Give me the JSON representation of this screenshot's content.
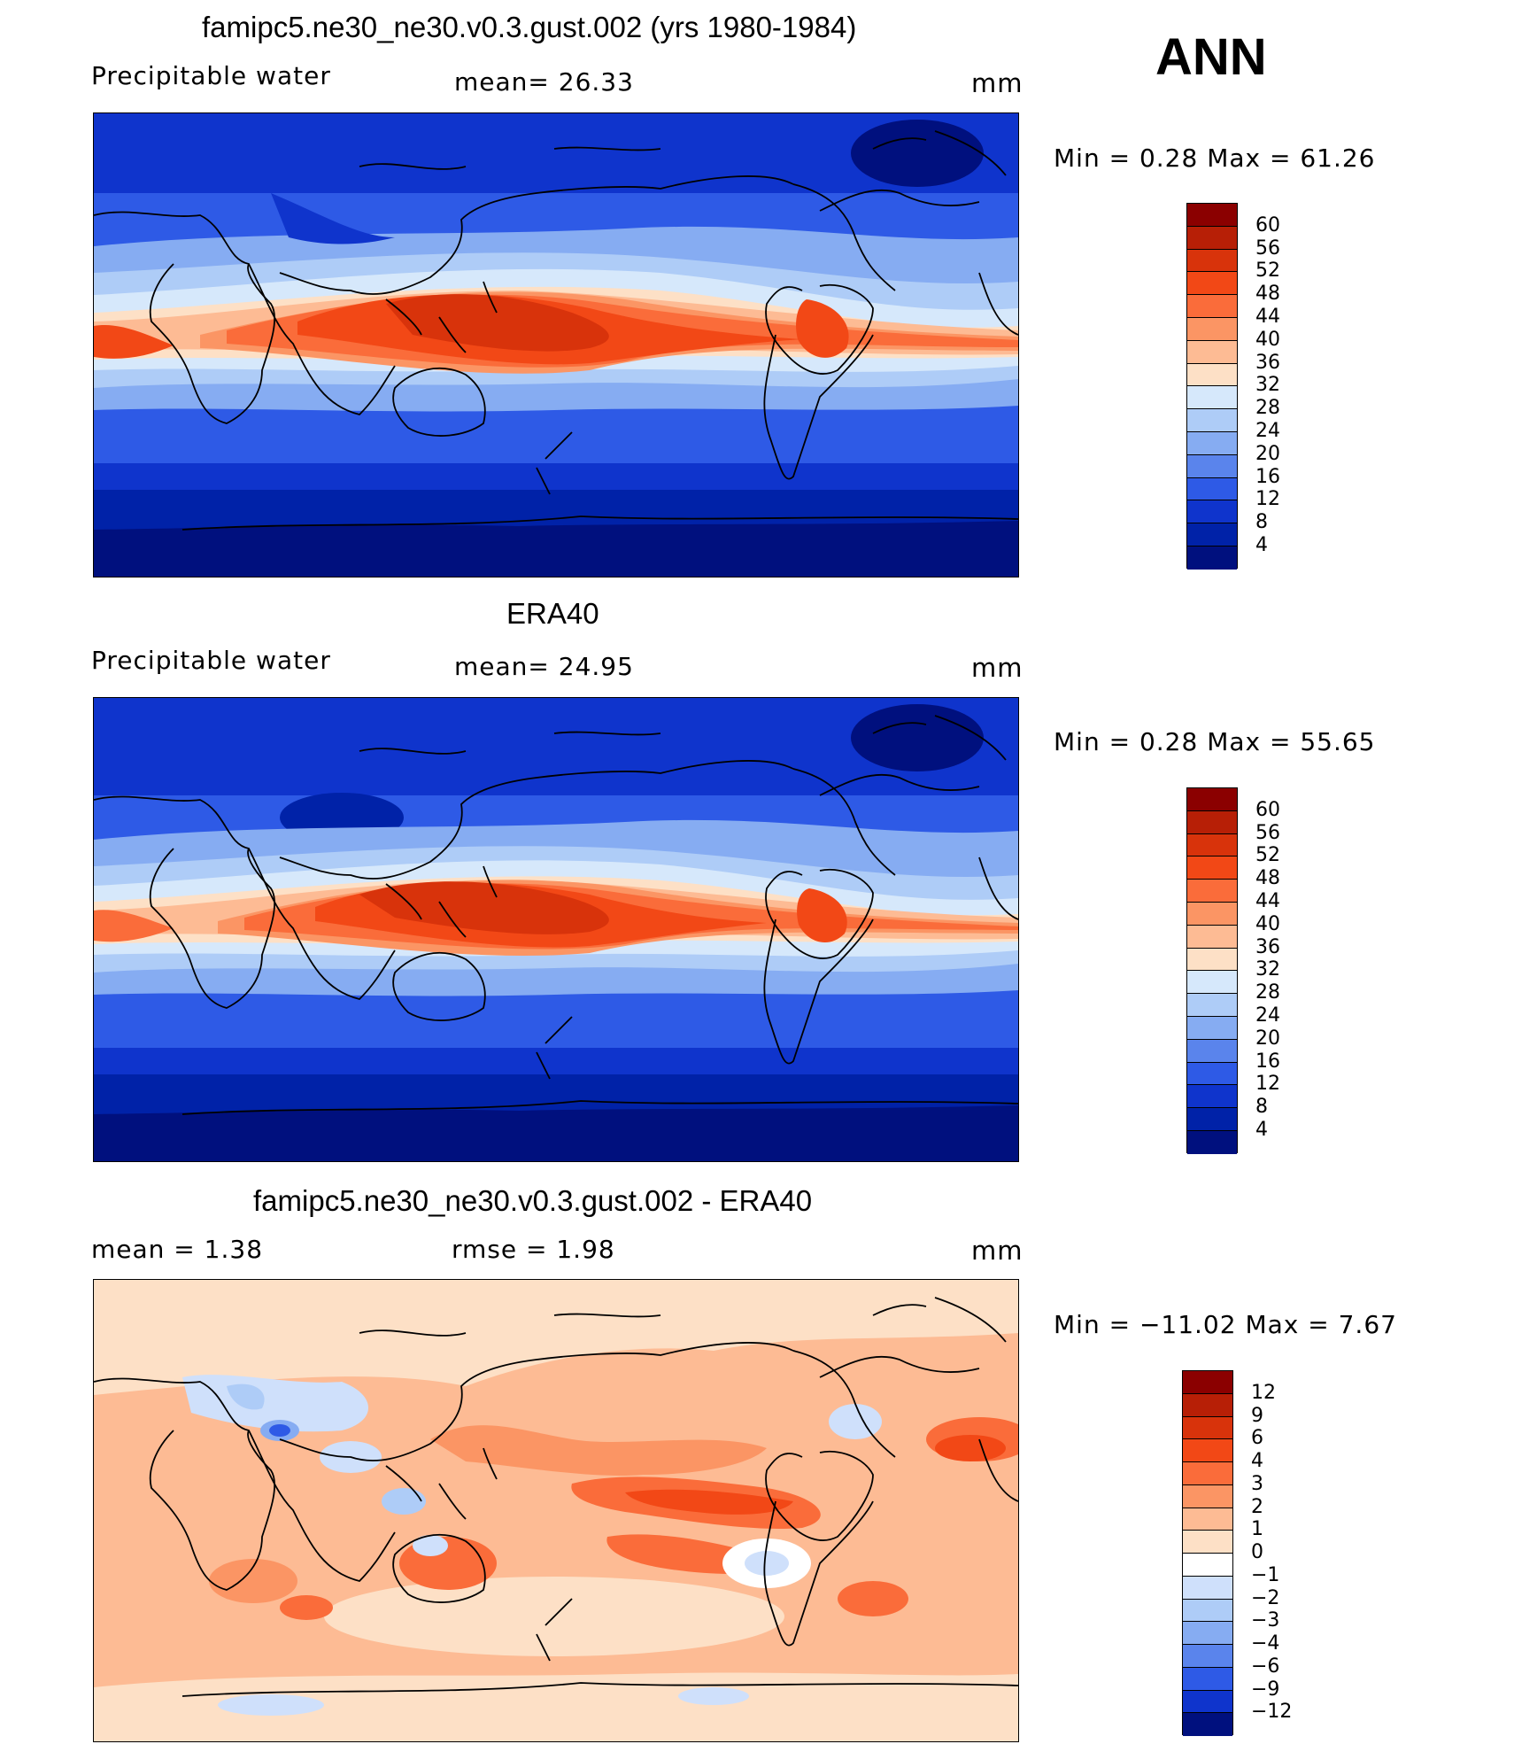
{
  "season": "ANN",
  "panels": [
    {
      "id": "model",
      "title": "famipc5.ne30_ne30.v0.3.gust.002 (yrs 1980-1984)",
      "left_label": "Precipitable  water",
      "center_label": "mean=   26.33",
      "units": "mm",
      "minmax": "Min  =     0.28  Max  =    61.26",
      "colorbar": {
        "labels": [
          "60",
          "56",
          "52",
          "48",
          "44",
          "40",
          "36",
          "32",
          "28",
          "24",
          "20",
          "16",
          "12",
          "8",
          "4"
        ],
        "colors": [
          "#8b0000",
          "#b71f06",
          "#d8330b",
          "#f24816",
          "#fa6c3a",
          "#fb9564",
          "#fdbb94",
          "#fde0c6",
          "#d6e8fb",
          "#aeccf7",
          "#86acf2",
          "#5a84ec",
          "#2e5ae6",
          "#0f34cc",
          "#0022a8",
          "#00107e"
        ]
      }
    },
    {
      "id": "obs",
      "title": "ERA40",
      "left_label": "Precipitable  water",
      "center_label": "mean=   24.95",
      "units": "mm",
      "minmax": "Min  =     0.28  Max  =    55.65",
      "colorbar": {
        "labels": [
          "60",
          "56",
          "52",
          "48",
          "44",
          "40",
          "36",
          "32",
          "28",
          "24",
          "20",
          "16",
          "12",
          "8",
          "4"
        ],
        "colors": [
          "#8b0000",
          "#b71f06",
          "#d8330b",
          "#f24816",
          "#fa6c3a",
          "#fb9564",
          "#fdbb94",
          "#fde0c6",
          "#d6e8fb",
          "#aeccf7",
          "#86acf2",
          "#5a84ec",
          "#2e5ae6",
          "#0f34cc",
          "#0022a8",
          "#00107e"
        ]
      }
    },
    {
      "id": "diff",
      "title": "famipc5.ne30_ne30.v0.3.gust.002 - ERA40",
      "left_label": "mean  =      1.38",
      "center_label": "rmse  =      1.98",
      "units": "mm",
      "minmax": "Min  = −11.02  Max  =      7.67",
      "colorbar": {
        "labels": [
          "12",
          "9",
          "6",
          "4",
          "3",
          "2",
          "1",
          "0",
          "−1",
          "−2",
          "−3",
          "−4",
          "−6",
          "−9",
          "−12"
        ],
        "colors": [
          "#8b0000",
          "#b71f06",
          "#d8330b",
          "#f24816",
          "#fa6c3a",
          "#fb9564",
          "#fdbb94",
          "#fde0c6",
          "#ffffff",
          "#cfe0fb",
          "#aeccf7",
          "#86acf2",
          "#5a84ec",
          "#2e5ae6",
          "#0f34cc",
          "#00107e"
        ]
      }
    }
  ]
}
